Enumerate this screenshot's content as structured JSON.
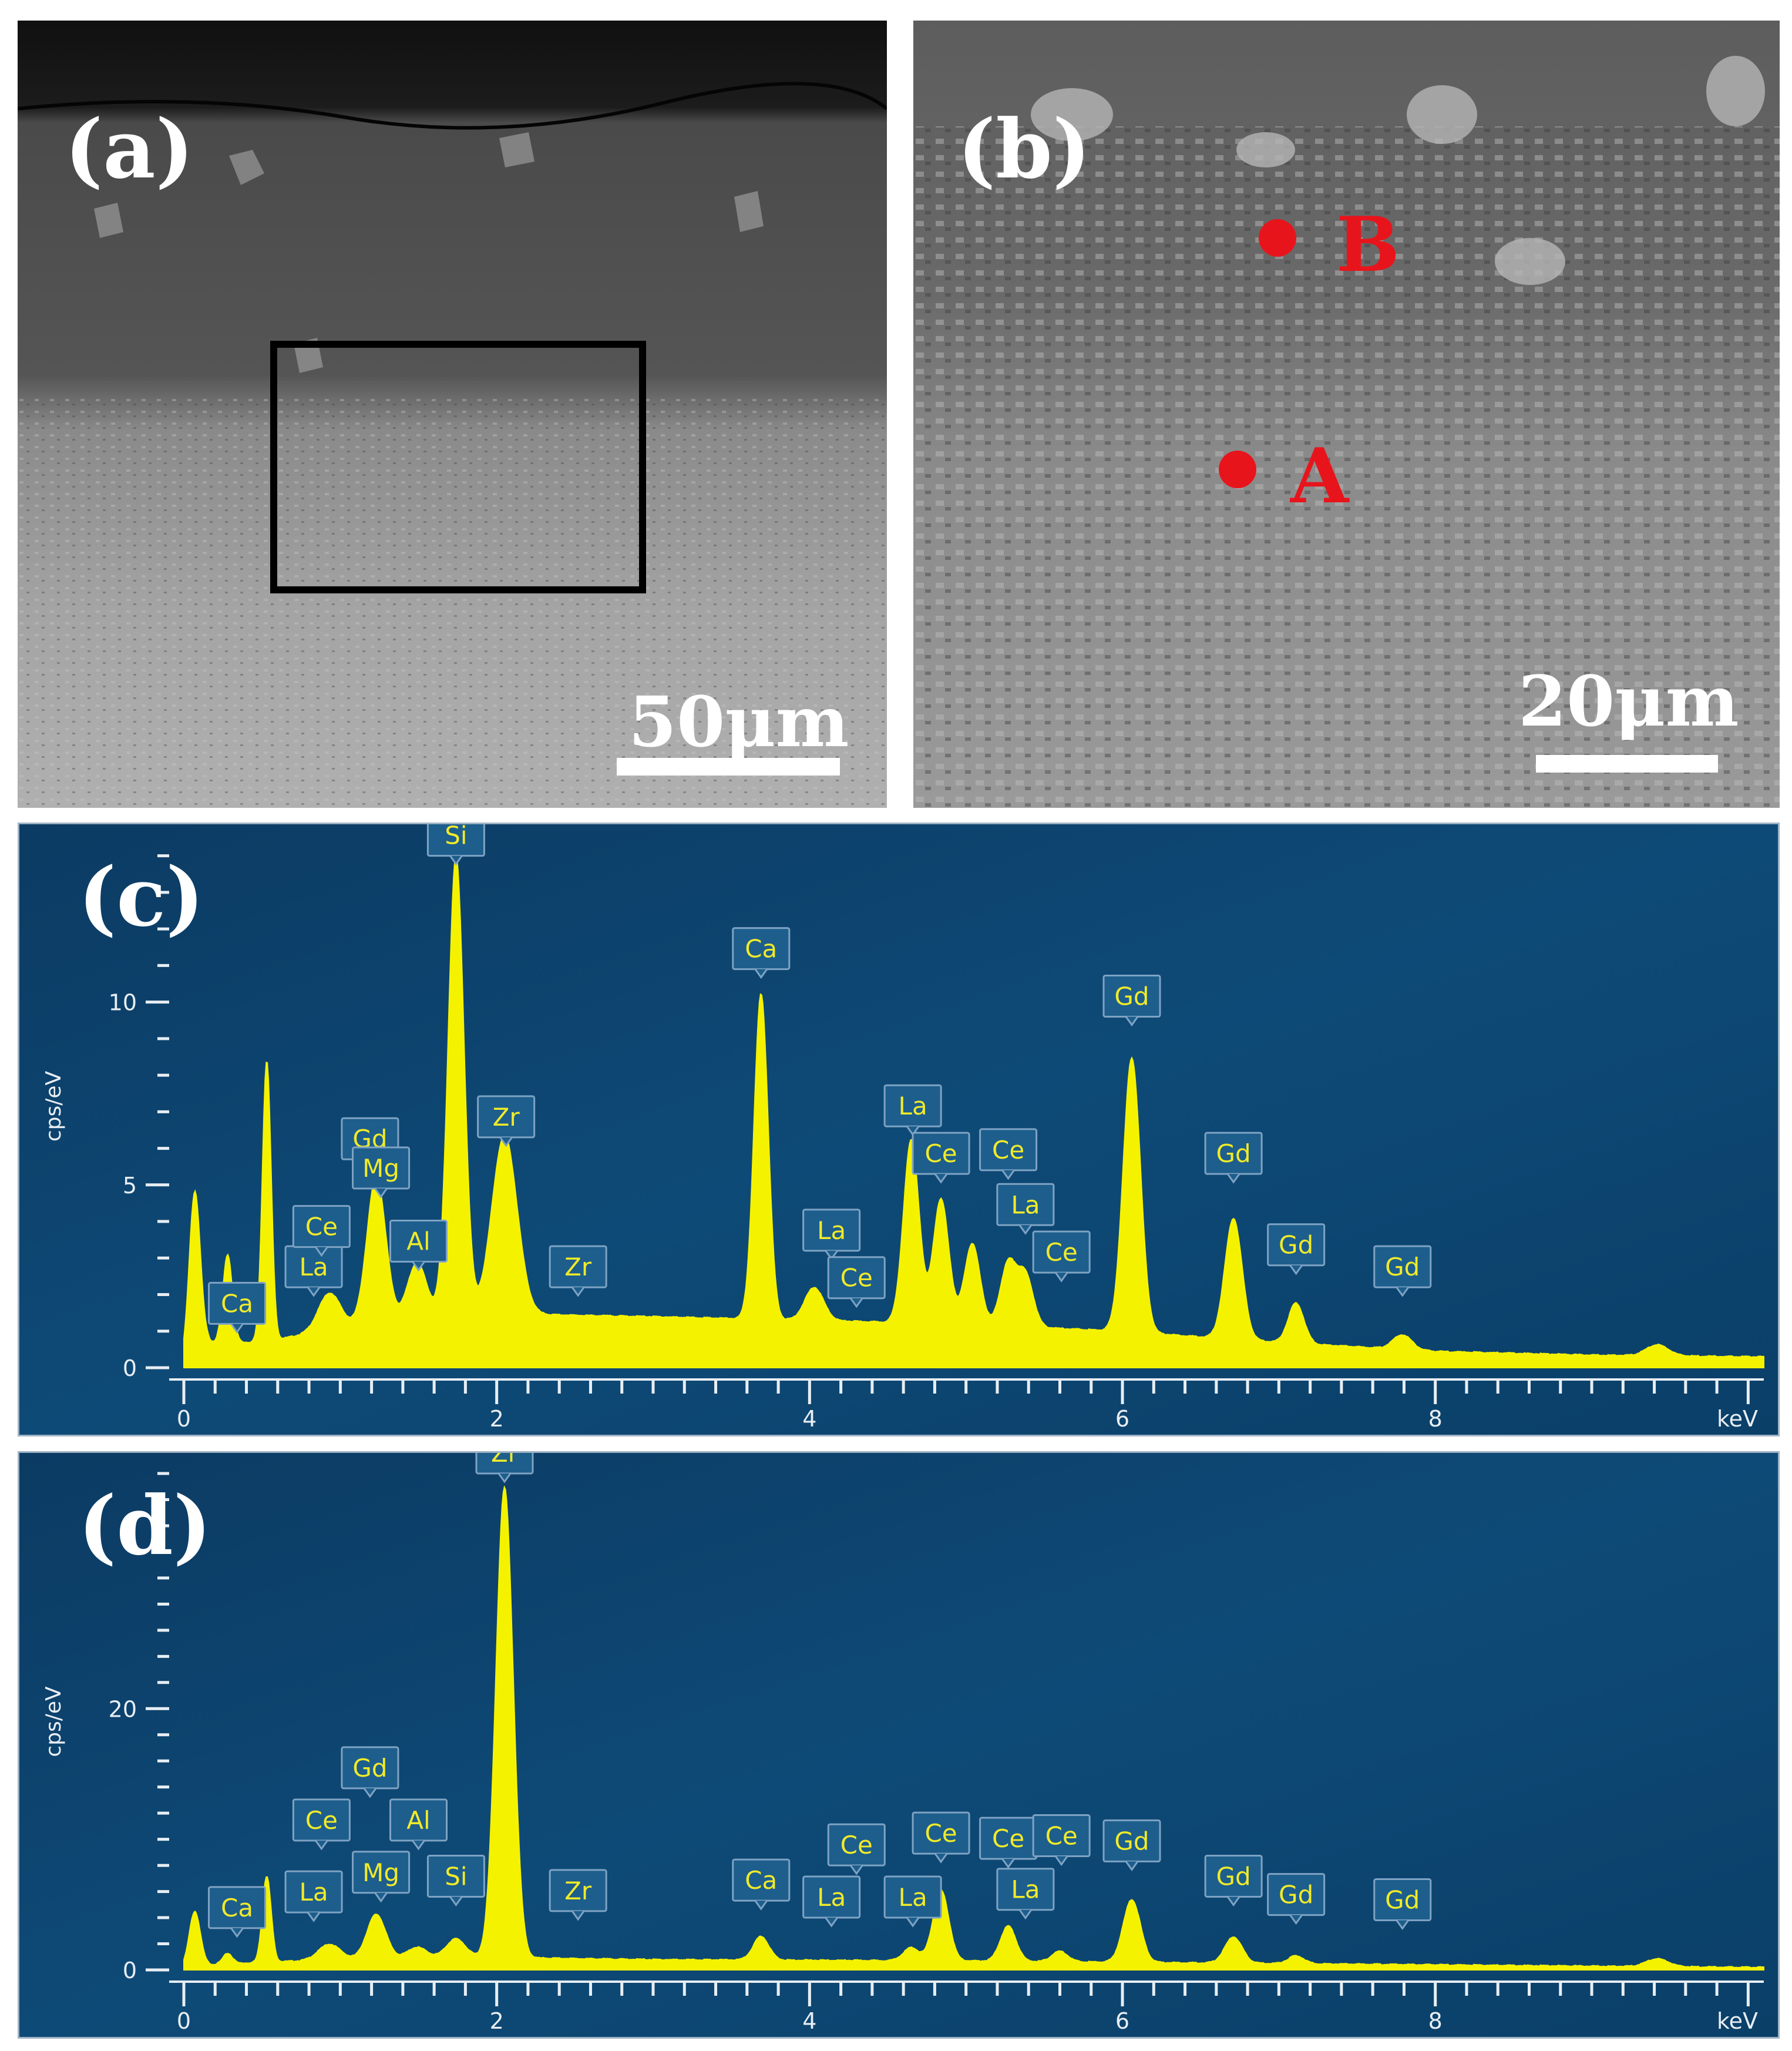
{
  "panels": {
    "a": {
      "label": "(a)",
      "scale_bar": "50μm"
    },
    "b": {
      "label": "(b)",
      "scale_bar": "20μm",
      "points": [
        "B",
        "A"
      ]
    },
    "c": {
      "label": "(c)"
    },
    "d": {
      "label": "(d)"
    }
  },
  "colors": {
    "eds_background": "#0e4a77",
    "spectrum_fill": "#f5f200",
    "peak_label_box": "#1d5e8c",
    "marker_red": "#e8141c",
    "scale_bar": "#ffffff"
  },
  "chart_data": [
    {
      "type": "area",
      "panel": "(c)",
      "xlabel": "keV",
      "ylabel": "cps/eV",
      "xlim": [
        0,
        10.1
      ],
      "ylim": [
        0,
        14.3
      ],
      "x_ticks": [
        "0",
        "2",
        "4",
        "6",
        "8"
      ],
      "y_ticks": [
        "0",
        "5",
        "10"
      ],
      "y_tick_values": [
        0,
        5,
        10
      ],
      "background": [
        [
          0,
          0.2
        ],
        [
          0.15,
          0.7
        ],
        [
          0.5,
          0.7
        ],
        [
          1,
          1.1
        ],
        [
          1.7,
          1.5
        ],
        [
          3,
          1.4
        ],
        [
          4,
          1.3
        ],
        [
          5,
          1.2
        ],
        [
          6,
          1.0
        ],
        [
          7,
          0.7
        ],
        [
          8,
          0.45
        ],
        [
          9,
          0.35
        ],
        [
          10.1,
          0.3
        ]
      ],
      "peaks": [
        {
          "energy": 0.07,
          "height": 4.4,
          "width": 0.035
        },
        {
          "energy": 0.28,
          "height": 2.4,
          "width": 0.03
        },
        {
          "energy": 0.53,
          "height": 7.7,
          "width": 0.028
        },
        {
          "energy": 0.93,
          "height": 1.0,
          "width": 0.07
        },
        {
          "energy": 1.23,
          "height": 4.0,
          "width": 0.06
        },
        {
          "energy": 1.49,
          "height": 1.5,
          "width": 0.06
        },
        {
          "energy": 1.74,
          "height": 12.5,
          "width": 0.05
        },
        {
          "energy": 2.05,
          "height": 4.9,
          "width": 0.08
        },
        {
          "energy": 3.69,
          "height": 8.9,
          "width": 0.045
        },
        {
          "energy": 4.03,
          "height": 0.9,
          "width": 0.06
        },
        {
          "energy": 4.65,
          "height": 5.0,
          "width": 0.05
        },
        {
          "energy": 4.84,
          "height": 3.4,
          "width": 0.05
        },
        {
          "energy": 5.04,
          "height": 2.2,
          "width": 0.05
        },
        {
          "energy": 5.27,
          "height": 1.7,
          "width": 0.05
        },
        {
          "energy": 5.38,
          "height": 1.4,
          "width": 0.05
        },
        {
          "energy": 6.06,
          "height": 7.5,
          "width": 0.055
        },
        {
          "energy": 6.71,
          "height": 3.3,
          "width": 0.055
        },
        {
          "energy": 7.11,
          "height": 1.1,
          "width": 0.05
        },
        {
          "energy": 7.79,
          "height": 0.4,
          "width": 0.06
        },
        {
          "energy": 9.42,
          "height": 0.3,
          "width": 0.07
        }
      ],
      "peak_labels": [
        {
          "element": "Ca",
          "energy": 0.34,
          "value": 1.2
        },
        {
          "element": "La",
          "energy": 0.83,
          "value": 2.2
        },
        {
          "element": "Ce",
          "energy": 0.88,
          "value": 3.3
        },
        {
          "element": "Gd",
          "energy": 1.19,
          "value": 5.7
        },
        {
          "element": "Mg",
          "energy": 1.26,
          "value": 4.9
        },
        {
          "element": "Al",
          "energy": 1.5,
          "value": 2.9
        },
        {
          "element": "Si",
          "energy": 1.74,
          "value": 14.0
        },
        {
          "element": "Zr",
          "energy": 2.06,
          "value": 6.3
        },
        {
          "element": "Zr",
          "energy": 2.52,
          "value": 2.2
        },
        {
          "element": "Ca",
          "energy": 3.69,
          "value": 10.9
        },
        {
          "element": "La",
          "energy": 4.14,
          "value": 3.2
        },
        {
          "element": "Ce",
          "energy": 4.3,
          "value": 1.9
        },
        {
          "element": "La",
          "energy": 4.66,
          "value": 6.6
        },
        {
          "element": "Ce",
          "energy": 4.84,
          "value": 5.3
        },
        {
          "element": "Ce",
          "energy": 5.27,
          "value": 5.4
        },
        {
          "element": "La",
          "energy": 5.38,
          "value": 3.9
        },
        {
          "element": "Ce",
          "energy": 5.61,
          "value": 2.6
        },
        {
          "element": "Gd",
          "energy": 6.06,
          "value": 9.6
        },
        {
          "element": "Gd",
          "energy": 6.71,
          "value": 5.3
        },
        {
          "element": "Gd",
          "energy": 7.11,
          "value": 2.8
        },
        {
          "element": "Gd",
          "energy": 7.79,
          "value": 2.2
        }
      ]
    },
    {
      "type": "area",
      "panel": "(d)",
      "xlabel": "keV",
      "ylabel": "cps/eV",
      "xlim": [
        0,
        10.1
      ],
      "ylim": [
        0,
        38
      ],
      "x_ticks": [
        "0",
        "2",
        "4",
        "6",
        "8"
      ],
      "y_ticks": [
        "0",
        "20"
      ],
      "y_tick_values": [
        0,
        20
      ],
      "background": [
        [
          0,
          0.2
        ],
        [
          0.15,
          0.4
        ],
        [
          0.5,
          0.6
        ],
        [
          1,
          0.8
        ],
        [
          1.7,
          1.0
        ],
        [
          3,
          0.8
        ],
        [
          5,
          0.7
        ],
        [
          7,
          0.5
        ],
        [
          9,
          0.3
        ],
        [
          10.1,
          0.2
        ]
      ],
      "peaks": [
        {
          "energy": 0.07,
          "height": 4.2,
          "width": 0.035
        },
        {
          "energy": 0.28,
          "height": 0.8,
          "width": 0.03
        },
        {
          "energy": 0.53,
          "height": 6.6,
          "width": 0.028
        },
        {
          "energy": 0.93,
          "height": 1.2,
          "width": 0.07
        },
        {
          "energy": 1.23,
          "height": 3.4,
          "width": 0.06
        },
        {
          "energy": 1.49,
          "height": 0.8,
          "width": 0.06
        },
        {
          "energy": 1.74,
          "height": 1.4,
          "width": 0.06
        },
        {
          "energy": 2.05,
          "height": 36.0,
          "width": 0.055
        },
        {
          "energy": 3.69,
          "height": 1.8,
          "width": 0.05
        },
        {
          "energy": 4.65,
          "height": 1.0,
          "width": 0.05
        },
        {
          "energy": 4.84,
          "height": 5.4,
          "width": 0.05
        },
        {
          "energy": 5.27,
          "height": 2.7,
          "width": 0.05
        },
        {
          "energy": 5.6,
          "height": 0.8,
          "width": 0.05
        },
        {
          "energy": 6.06,
          "height": 4.8,
          "width": 0.055
        },
        {
          "energy": 6.71,
          "height": 2.0,
          "width": 0.055
        },
        {
          "energy": 7.11,
          "height": 0.6,
          "width": 0.05
        },
        {
          "energy": 9.42,
          "height": 0.6,
          "width": 0.07
        }
      ],
      "peak_labels": [
        {
          "element": "Ca",
          "energy": 0.34,
          "value": 3.2
        },
        {
          "element": "La",
          "energy": 0.83,
          "value": 4.4
        },
        {
          "element": "Ce",
          "energy": 0.88,
          "value": 9.9
        },
        {
          "element": "Gd",
          "energy": 1.19,
          "value": 13.9
        },
        {
          "element": "Mg",
          "energy": 1.26,
          "value": 5.9
        },
        {
          "element": "Al",
          "energy": 1.5,
          "value": 9.9
        },
        {
          "element": "Si",
          "energy": 1.74,
          "value": 5.6
        },
        {
          "element": "Zr",
          "energy": 2.05,
          "value": 38.0
        },
        {
          "element": "Zr",
          "energy": 2.52,
          "value": 4.5
        },
        {
          "element": "Ca",
          "energy": 3.69,
          "value": 5.3
        },
        {
          "element": "La",
          "energy": 4.14,
          "value": 4.0
        },
        {
          "element": "Ce",
          "energy": 4.3,
          "value": 8.0
        },
        {
          "element": "La",
          "energy": 4.66,
          "value": 4.0
        },
        {
          "element": "Ce",
          "energy": 4.84,
          "value": 8.9
        },
        {
          "element": "Ce",
          "energy": 5.27,
          "value": 8.5
        },
        {
          "element": "La",
          "energy": 5.38,
          "value": 4.6
        },
        {
          "element": "Ce",
          "energy": 5.61,
          "value": 8.7
        },
        {
          "element": "Gd",
          "energy": 6.06,
          "value": 8.3
        },
        {
          "element": "Gd",
          "energy": 6.71,
          "value": 5.6
        },
        {
          "element": "Gd",
          "energy": 7.11,
          "value": 4.2
        },
        {
          "element": "Gd",
          "energy": 7.79,
          "value": 3.8
        }
      ]
    }
  ]
}
